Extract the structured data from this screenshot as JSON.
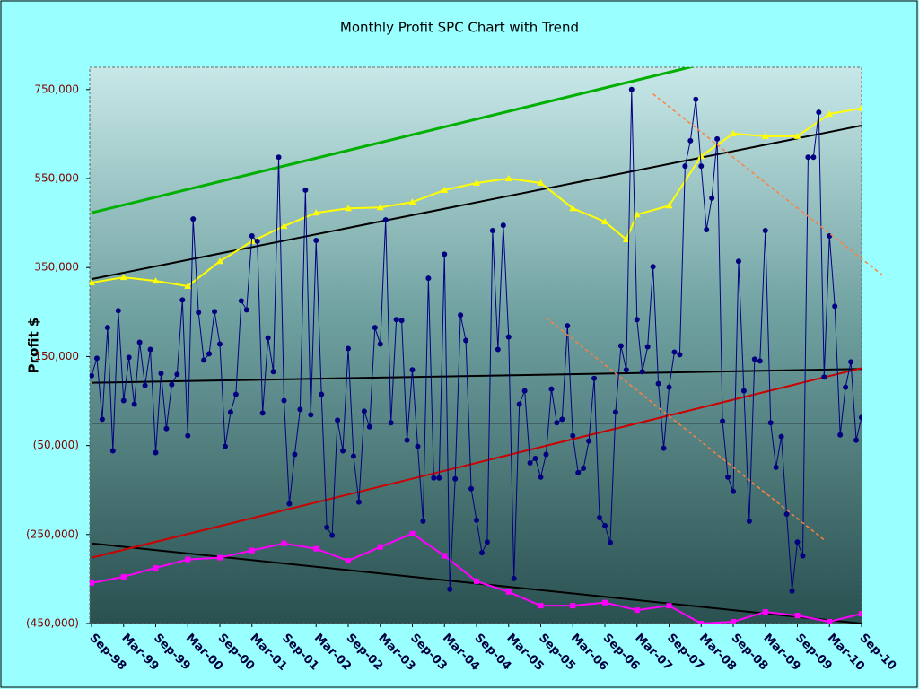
{
  "chart_data": {
    "type": "line",
    "title": "Monthly Profit SPC Chart with Trend",
    "y_label": "Profit $",
    "xlim": [
      0,
      144
    ],
    "xticks": [
      {
        "value": 0,
        "label": "Sep-98"
      },
      {
        "value": 6,
        "label": "Mar-99"
      },
      {
        "value": 12,
        "label": "Sep-99"
      },
      {
        "value": 18,
        "label": "Mar-00"
      },
      {
        "value": 24,
        "label": "Sep-00"
      },
      {
        "value": 30,
        "label": "Mar-01"
      },
      {
        "value": 36,
        "label": "Sep-01"
      },
      {
        "value": 42,
        "label": "Mar-02"
      },
      {
        "value": 48,
        "label": "Sep-02"
      },
      {
        "value": 54,
        "label": "Mar-03"
      },
      {
        "value": 60,
        "label": "Sep-03"
      },
      {
        "value": 66,
        "label": "Mar-04"
      },
      {
        "value": 72,
        "label": "Sep-04"
      },
      {
        "value": 78,
        "label": "Mar-05"
      },
      {
        "value": 84,
        "label": "Sep-05"
      },
      {
        "value": 90,
        "label": "Mar-06"
      },
      {
        "value": 96,
        "label": "Sep-06"
      },
      {
        "value": 102,
        "label": "Mar-07"
      },
      {
        "value": 108,
        "label": "Sep-07"
      },
      {
        "value": 114,
        "label": "Mar-08"
      },
      {
        "value": 120,
        "label": "Sep-08"
      },
      {
        "value": 126,
        "label": "Mar-09"
      },
      {
        "value": 132,
        "label": "Sep-09"
      },
      {
        "value": 138,
        "label": "Mar-10"
      },
      {
        "value": 144,
        "label": "Sep-10"
      }
    ],
    "ylim": [
      -450000,
      800000
    ],
    "yticks": [
      {
        "value": 750000,
        "label": "750,000"
      },
      {
        "value": 550000,
        "label": "550,000"
      },
      {
        "value": 350000,
        "label": "350,000"
      },
      {
        "value": 150000,
        "label": "150,000"
      },
      {
        "value": -50000,
        "label": "(50,000)"
      },
      {
        "value": -250000,
        "label": "(250,000)"
      },
      {
        "value": -450000,
        "label": "(450,000)"
      }
    ],
    "series": [
      {
        "color": "#000000",
        "width": 1,
        "x": [
          0,
          144
        ],
        "values": [
          0,
          0
        ]
      },
      {
        "color": "#00b000",
        "width": 3,
        "x": [
          0,
          144
        ],
        "values": [
          473000,
          894000
        ]
      },
      {
        "color": "#000000",
        "width": 2,
        "x": [
          0,
          144
        ],
        "values": [
          324000,
          669000
        ]
      },
      {
        "color": "#000000",
        "width": 2,
        "x": [
          0,
          144
        ],
        "values": [
          91000,
          122000
        ]
      },
      {
        "color": "#000000",
        "width": 2,
        "x": [
          0,
          144
        ],
        "values": [
          -270000,
          -450000
        ]
      },
      {
        "color": "#cc0000",
        "width": 2,
        "x": [
          0,
          144
        ],
        "values": [
          -302000,
          124000
        ]
      },
      {
        "color": "#ff8040",
        "width": 1.5,
        "dash": true,
        "x": [
          105,
          148
        ],
        "values": [
          740000,
          332000
        ]
      },
      {
        "color": "#ff8040",
        "width": 1.5,
        "dash": true,
        "x": [
          85,
          137
        ],
        "values": [
          237000,
          -262000
        ]
      },
      {
        "color": "#ffff00",
        "width": 2,
        "marker": "triangle",
        "x": [
          0,
          6,
          12,
          18,
          24,
          30,
          36,
          42,
          48,
          54,
          60,
          66,
          72,
          78,
          84,
          90,
          96,
          100,
          102,
          108,
          114,
          120,
          126,
          132,
          138,
          144
        ],
        "values": [
          316000,
          328000,
          320000,
          308000,
          364000,
          409000,
          443000,
          473000,
          483000,
          485000,
          497000,
          524000,
          540000,
          550000,
          540000,
          483000,
          453000,
          413000,
          469000,
          489000,
          600000,
          651000,
          645000,
          645000,
          695000,
          708000
        ]
      },
      {
        "color": "#ff00ff",
        "width": 2,
        "marker": "square",
        "x": [
          0,
          6,
          12,
          18,
          24,
          30,
          36,
          42,
          48,
          54,
          60,
          66,
          72,
          78,
          84,
          90,
          96,
          102,
          108,
          114,
          120,
          126,
          132,
          138,
          144
        ],
        "values": [
          -359000,
          -345000,
          -325000,
          -306000,
          -302000,
          -286000,
          -270000,
          -282000,
          -309000,
          -278000,
          -248000,
          -298000,
          -355000,
          -379000,
          -410000,
          -410000,
          -403000,
          -420000,
          -410000,
          -450000,
          -446000,
          -424000,
          -432000,
          -446000,
          -428000
        ]
      },
      {
        "color": "#000080",
        "width": 1,
        "marker": "circle",
        "values": [
          107000,
          146000,
          9000,
          215000,
          -62000,
          253000,
          51000,
          148000,
          43000,
          182000,
          85000,
          166000,
          -66000,
          112000,
          -12000,
          87000,
          110000,
          277000,
          -28000,
          459000,
          249000,
          142000,
          156000,
          251000,
          178000,
          -52000,
          25000,
          65000,
          275000,
          255000,
          421000,
          409000,
          23000,
          192000,
          116000,
          598000,
          51000,
          -181000,
          -70000,
          31000,
          524000,
          19000,
          411000,
          65000,
          -234000,
          -252000,
          7000,
          -62000,
          168000,
          -74000,
          -177000,
          27000,
          -8000,
          215000,
          178000,
          457000,
          1000,
          233000,
          231000,
          -38000,
          120000,
          -52000,
          -220000,
          326000,
          -123000,
          -123000,
          380000,
          -373000,
          -125000,
          243000,
          186000,
          -147000,
          -218000,
          -291000,
          -267000,
          433000,
          166000,
          445000,
          194000,
          -349000,
          43000,
          73000,
          -89000,
          -79000,
          -121000,
          -70000,
          77000,
          1000,
          9000,
          219000,
          -28000,
          -111000,
          -101000,
          -40000,
          101000,
          -212000,
          -230000,
          -268000,
          25000,
          174000,
          120000,
          750000,
          233000,
          116000,
          172000,
          352000,
          89000,
          -56000,
          81000,
          160000,
          154000,
          578000,
          635000,
          728000,
          578000,
          435000,
          506000,
          639000,
          5000,
          -121000,
          -153000,
          364000,
          73000,
          -220000,
          144000,
          140000,
          433000,
          1000,
          -99000,
          -30000,
          -204000,
          -377000,
          -267000,
          -298000,
          598000,
          598000,
          699000,
          104000,
          421000,
          263000,
          -26000,
          81000,
          138000,
          -38000,
          13000
        ]
      }
    ]
  }
}
